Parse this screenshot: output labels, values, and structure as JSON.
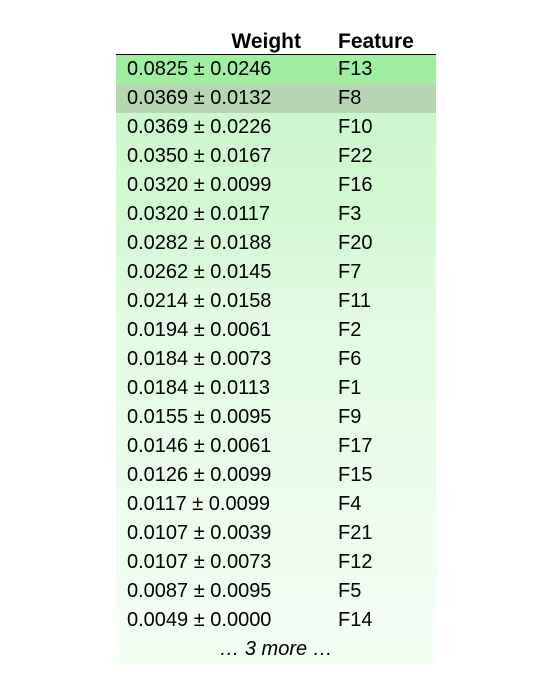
{
  "table": {
    "headers": {
      "weight": "Weight",
      "feature": "Feature"
    },
    "rows": [
      {
        "weight": "0.0825 ± 0.0246",
        "feature": "F13",
        "color": "#9ef09e"
      },
      {
        "weight": "0.0369 ± 0.0132",
        "feature": "F8",
        "color": "#b5d6b0"
      },
      {
        "weight": "0.0369 ± 0.0226",
        "feature": "F10",
        "color": "#cdf8cd"
      },
      {
        "weight": "0.0350 ± 0.0167",
        "feature": "F22",
        "color": "#cff8cf"
      },
      {
        "weight": "0.0320 ± 0.0099",
        "feature": "F16",
        "color": "#d3f9d3"
      },
      {
        "weight": "0.0320 ± 0.0117",
        "feature": "F3",
        "color": "#d3f9d3"
      },
      {
        "weight": "0.0282 ± 0.0188",
        "feature": "F20",
        "color": "#d8f9d8"
      },
      {
        "weight": "0.0262 ± 0.0145",
        "feature": "F7",
        "color": "#dbfadb"
      },
      {
        "weight": "0.0214 ± 0.0158",
        "feature": "F11",
        "color": "#e1fbe1"
      },
      {
        "weight": "0.0194 ± 0.0061",
        "feature": "F2",
        "color": "#e3fbe3"
      },
      {
        "weight": "0.0184 ± 0.0073",
        "feature": "F6",
        "color": "#e4fbe4"
      },
      {
        "weight": "0.0184 ± 0.0113",
        "feature": "F1",
        "color": "#e4fbe4"
      },
      {
        "weight": "0.0155 ± 0.0095",
        "feature": "F9",
        "color": "#e8fce8"
      },
      {
        "weight": "0.0146 ± 0.0061",
        "feature": "F17",
        "color": "#e9fce9"
      },
      {
        "weight": "0.0126 ± 0.0099",
        "feature": "F15",
        "color": "#ecfcec"
      },
      {
        "weight": "0.0117 ± 0.0099",
        "feature": "F4",
        "color": "#edfded"
      },
      {
        "weight": "0.0107 ± 0.0039",
        "feature": "F21",
        "color": "#eefdee"
      },
      {
        "weight": "0.0107 ± 0.0073",
        "feature": "F12",
        "color": "#eefdee"
      },
      {
        "weight": "0.0087 ± 0.0095",
        "feature": "F5",
        "color": "#f0fdf0"
      },
      {
        "weight": "0.0049 ± 0.0000",
        "feature": "F14",
        "color": "#f4fef4"
      }
    ],
    "more_label": "… 3 more …"
  }
}
